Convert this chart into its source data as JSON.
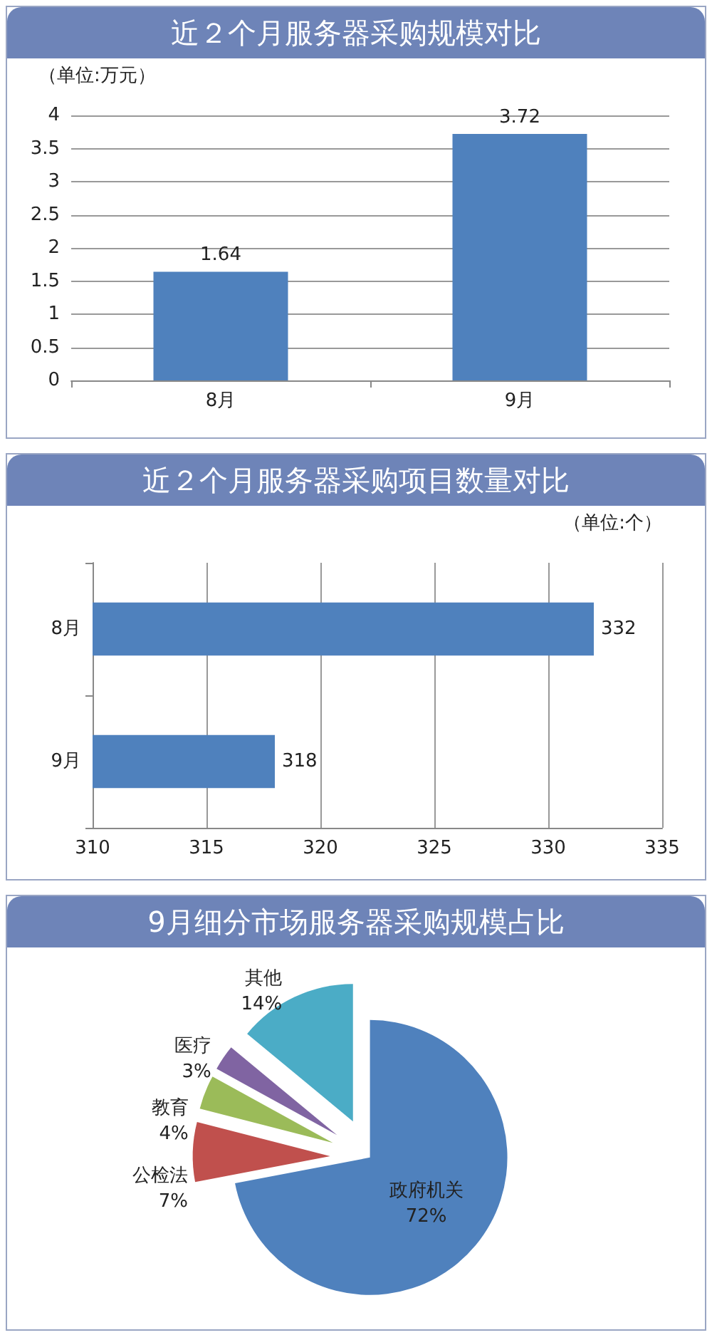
{
  "chart_data": [
    {
      "type": "bar",
      "title": "近２个月服务器采购规模对比",
      "annotations": [
        "（单位:万元）"
      ],
      "categories": [
        "8月",
        "9月"
      ],
      "values": [
        1.64,
        3.72
      ],
      "color": "#4f81bd",
      "ylim": [
        0,
        4
      ],
      "yticks": [
        0,
        0.5,
        1,
        1.5,
        2,
        2.5,
        3,
        3.5,
        4
      ],
      "grid": "y",
      "data_labels": true,
      "legend": false
    },
    {
      "type": "bar",
      "orientation": "horizontal",
      "title": "近２个月服务器采购项目数量对比",
      "annotations": [
        "（单位:个）"
      ],
      "categories": [
        "8月",
        "9月"
      ],
      "values": [
        332,
        318
      ],
      "color": "#4f81bd",
      "xlim": [
        310,
        335
      ],
      "xticks": [
        310,
        315,
        320,
        325,
        330,
        335
      ],
      "grid": "x",
      "data_labels": true,
      "legend": false
    },
    {
      "type": "pie",
      "title": "9月细分市场服务器采购规模占比",
      "categories": [
        "政府机关",
        "公检法",
        "教育",
        "医疗",
        "其他"
      ],
      "values": [
        72,
        7,
        4,
        3,
        14
      ],
      "value_labels": [
        "72%",
        "7%",
        "4%",
        "3%",
        "14%"
      ],
      "colors": [
        "#4f81bd",
        "#c0504d",
        "#9bbb59",
        "#8064a2",
        "#4bacc6"
      ],
      "legend": false
    }
  ]
}
